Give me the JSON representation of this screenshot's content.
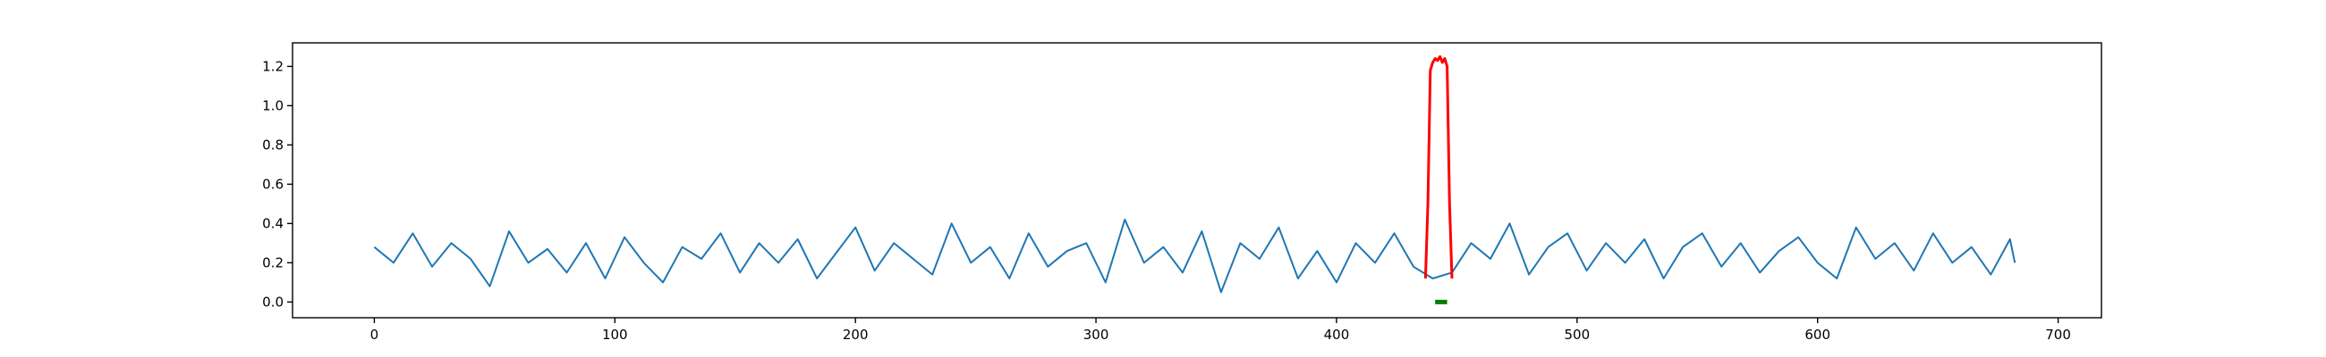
{
  "chart_data": {
    "type": "line",
    "title": "",
    "xlabel": "",
    "ylabel": "",
    "xlim": [
      -34,
      718
    ],
    "ylim": [
      -0.08,
      1.32
    ],
    "x_ticks": [
      0,
      100,
      200,
      300,
      400,
      500,
      600,
      700
    ],
    "y_ticks": [
      0.0,
      0.2,
      0.4,
      0.6,
      0.8,
      1.0,
      1.2
    ],
    "x_tick_labels": [
      "0",
      "100",
      "200",
      "300",
      "400",
      "500",
      "600",
      "700"
    ],
    "y_tick_labels": [
      "0.0",
      "0.2",
      "0.4",
      "0.6",
      "0.8",
      "1.0",
      "1.2"
    ],
    "grid": false,
    "legend": "none",
    "series": [
      {
        "color": "#1f77b4",
        "x": [
          0,
          8,
          16,
          24,
          32,
          40,
          48,
          56,
          64,
          72,
          80,
          88,
          96,
          104,
          112,
          120,
          128,
          136,
          144,
          152,
          160,
          168,
          176,
          184,
          192,
          200,
          208,
          216,
          224,
          232,
          240,
          248,
          256,
          264,
          272,
          280,
          288,
          296,
          304,
          312,
          320,
          328,
          336,
          344,
          352,
          360,
          368,
          376,
          384,
          392,
          400,
          408,
          416,
          424,
          432,
          440,
          448,
          456,
          464,
          472,
          480,
          488,
          496,
          504,
          512,
          520,
          528,
          536,
          544,
          552,
          560,
          568,
          576,
          584,
          592,
          600,
          608,
          616,
          624,
          632,
          640,
          648,
          656,
          664,
          672,
          680,
          682
        ],
        "y": [
          0.28,
          0.2,
          0.35,
          0.18,
          0.3,
          0.22,
          0.08,
          0.36,
          0.2,
          0.27,
          0.15,
          0.3,
          0.12,
          0.33,
          0.2,
          0.1,
          0.28,
          0.22,
          0.35,
          0.15,
          0.3,
          0.2,
          0.32,
          0.12,
          0.25,
          0.38,
          0.16,
          0.3,
          0.22,
          0.14,
          0.4,
          0.2,
          0.28,
          0.12,
          0.35,
          0.18,
          0.26,
          0.3,
          0.1,
          0.42,
          0.2,
          0.28,
          0.15,
          0.36,
          0.05,
          0.3,
          0.22,
          0.38,
          0.12,
          0.26,
          0.1,
          0.3,
          0.2,
          0.35,
          0.18,
          0.12,
          0.15,
          0.3,
          0.22,
          0.4,
          0.14,
          0.28,
          0.35,
          0.16,
          0.3,
          0.2,
          0.32,
          0.12,
          0.28,
          0.35,
          0.18,
          0.3,
          0.15,
          0.26,
          0.33,
          0.2,
          0.12,
          0.38,
          0.22,
          0.3,
          0.16,
          0.35,
          0.2,
          0.28,
          0.14,
          0.32,
          0.2
        ]
      },
      {
        "color": "#ff0000",
        "x": [
          437,
          438,
          439,
          440,
          441,
          442,
          443,
          444,
          445,
          446,
          447,
          448
        ],
        "y": [
          0.12,
          0.5,
          1.18,
          1.22,
          1.24,
          1.23,
          1.25,
          1.22,
          1.24,
          1.2,
          0.5,
          0.12
        ]
      },
      {
        "color": "#008000",
        "x": [
          441,
          446
        ],
        "y": [
          0.0,
          0.0
        ]
      }
    ]
  }
}
